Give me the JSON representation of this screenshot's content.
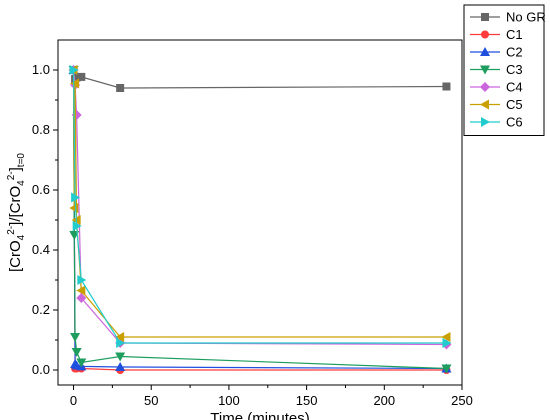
{
  "chart_data": {
    "type": "line",
    "xlabel": "Time (minutes)",
    "ylabel": {
      "prefix": "[CrO",
      "sub": "4",
      "sup": "2-",
      "middle": "]/[CrO",
      "sub2": "4",
      "sup2": "2-",
      "suffix": "]",
      "sub3": "t=0"
    },
    "xlim": [
      -10,
      250
    ],
    "ylim": [
      -0.05,
      1.1
    ],
    "x_ticks": [
      0,
      50,
      100,
      150,
      200,
      250
    ],
    "y_ticks": [
      0.0,
      0.2,
      0.4,
      0.6,
      0.8,
      1.0
    ],
    "x_tick_labels": [
      "0",
      "50",
      "100",
      "150",
      "200",
      "250"
    ],
    "y_tick_labels": [
      "0.0",
      "0.2",
      "0.4",
      "0.6",
      "0.8",
      "1.0"
    ],
    "legend_position": "outside-top-right",
    "grid": false,
    "series": [
      {
        "name": "No GR",
        "color": "#666666",
        "marker": "square",
        "x": [
          0,
          1,
          2,
          5,
          30,
          240
        ],
        "y": [
          1.0,
          0.97,
          0.975,
          0.977,
          0.94,
          0.945
        ]
      },
      {
        "name": "C1",
        "color": "#ff3b3b",
        "marker": "circle",
        "x": [
          0,
          1,
          2,
          5,
          30,
          240
        ],
        "y": [
          1.0,
          0.005,
          0.005,
          0.005,
          0.0,
          0.0
        ]
      },
      {
        "name": "C2",
        "color": "#1f4fdf",
        "marker": "triangle-up",
        "x": [
          0,
          1,
          2,
          5,
          30,
          240
        ],
        "y": [
          1.0,
          0.02,
          0.015,
          0.012,
          0.01,
          0.005
        ]
      },
      {
        "name": "C3",
        "color": "#1e9e5e",
        "marker": "triangle-down",
        "x": [
          0,
          0.5,
          1,
          2,
          5,
          30,
          240
        ],
        "y": [
          1.0,
          0.45,
          0.11,
          0.06,
          0.025,
          0.045,
          0.005
        ]
      },
      {
        "name": "C4",
        "color": "#cc66dd",
        "marker": "diamond",
        "x": [
          0,
          1,
          2,
          5,
          30,
          240
        ],
        "y": [
          1.0,
          0.95,
          0.85,
          0.24,
          0.09,
          0.085
        ]
      },
      {
        "name": "C5",
        "color": "#c9a000",
        "marker": "triangle-left",
        "x": [
          0,
          0.5,
          1,
          2,
          5,
          30,
          240
        ],
        "y": [
          1.0,
          0.54,
          0.955,
          0.5,
          0.265,
          0.11,
          0.11
        ]
      },
      {
        "name": "C6",
        "color": "#22cccc",
        "marker": "triangle-right",
        "x": [
          0,
          1,
          2,
          5,
          30,
          240
        ],
        "y": [
          1.0,
          0.575,
          0.48,
          0.3,
          0.09,
          0.09
        ]
      }
    ]
  }
}
